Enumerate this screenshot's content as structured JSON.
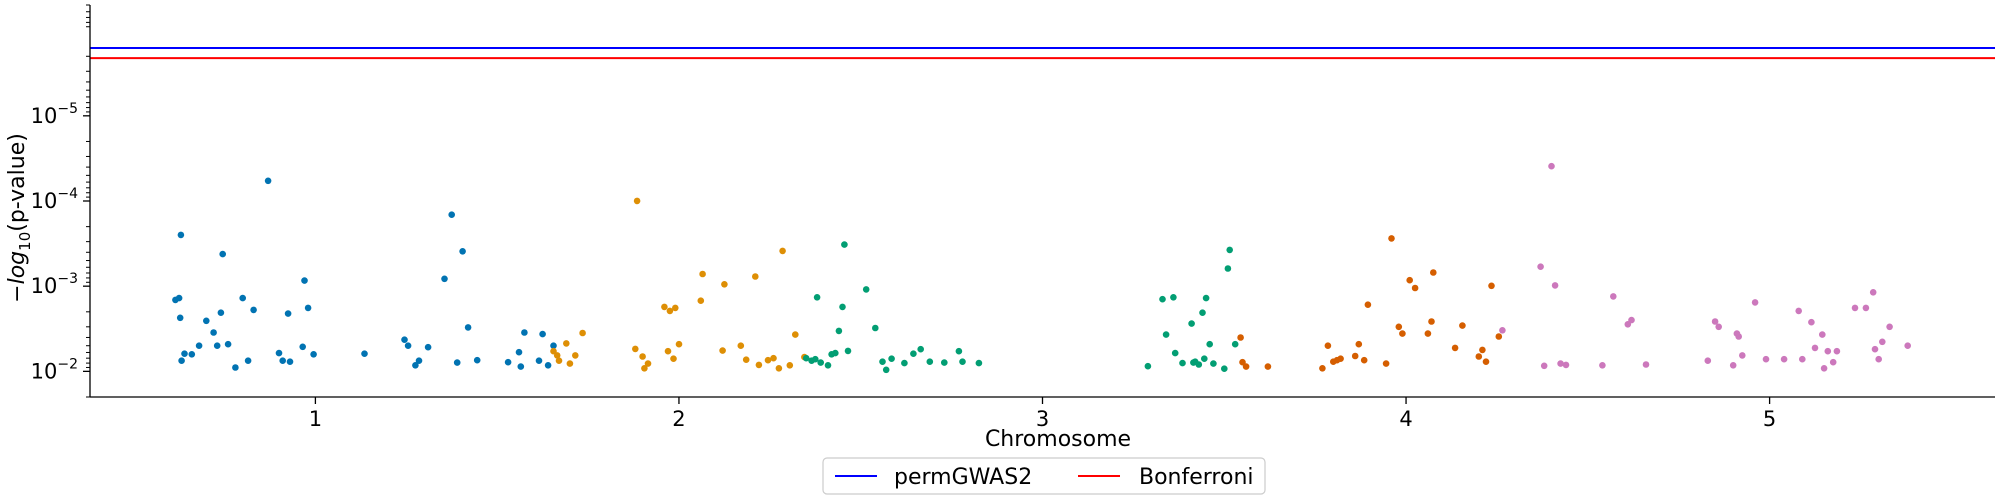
{
  "chart_data": {
    "type": "scatter",
    "title": "",
    "xlabel": "Chromosome",
    "ylabel_parts": {
      "prefix": "−",
      "log": "log",
      "sub": "10",
      "suffix": "(p-value)"
    },
    "x_scale": "genomic position (chromosomes placed end to end)",
    "y_scale": "log, inverted (smaller p-values plotted higher)",
    "ylim": [
      0.02,
      5e-07
    ],
    "xlim": [
      0.38,
      5.62
    ],
    "grid": false,
    "x_ticks": [
      {
        "label": "1",
        "x": 1.0
      },
      {
        "label": "2",
        "x": 2.0
      },
      {
        "label": "3",
        "x": 3.0
      },
      {
        "label": "4",
        "x": 4.0
      },
      {
        "label": "5",
        "x": 5.0
      }
    ],
    "y_ticks": [
      {
        "base": "10",
        "exp": "−2",
        "value": 0.01
      },
      {
        "base": "10",
        "exp": "−3",
        "value": 0.001
      },
      {
        "base": "10",
        "exp": "−4",
        "value": 0.0001
      },
      {
        "base": "10",
        "exp": "−5",
        "value": 1e-05
      }
    ],
    "thresholds": [
      {
        "name": "permGWAS2",
        "color": "#0000ff",
        "p": 1.6e-06
      },
      {
        "name": "Bonferroni",
        "color": "#ff0000",
        "p": 2.1e-06
      }
    ],
    "legend": {
      "position": "bottom-center",
      "columns": 2
    },
    "series": [
      {
        "color": "#0173b2",
        "points": [
          [
            0.615,
            0.00145
          ],
          [
            0.625,
            0.00138
          ],
          [
            0.628,
            0.00235
          ],
          [
            0.63,
            0.00025
          ],
          [
            0.632,
            0.0075
          ],
          [
            0.64,
            0.0062
          ],
          [
            0.66,
            0.0063
          ],
          [
            0.68,
            0.005
          ],
          [
            0.7,
            0.00255
          ],
          [
            0.72,
            0.0035
          ],
          [
            0.73,
            0.005
          ],
          [
            0.74,
            0.00205
          ],
          [
            0.745,
            0.00042
          ],
          [
            0.76,
            0.0048
          ],
          [
            0.78,
            0.009
          ],
          [
            0.8,
            0.00138
          ],
          [
            0.815,
            0.0075
          ],
          [
            0.83,
            0.0019
          ],
          [
            0.87,
            5.8e-05
          ],
          [
            0.9,
            0.0061
          ],
          [
            0.91,
            0.0075
          ],
          [
            0.925,
            0.0021
          ],
          [
            0.93,
            0.0077
          ],
          [
            0.965,
            0.00515
          ],
          [
            0.97,
            0.00086
          ],
          [
            0.98,
            0.0018
          ],
          [
            0.995,
            0.0063
          ],
          [
            1.135,
            0.0062
          ],
          [
            1.245,
            0.00425
          ],
          [
            1.255,
            0.005
          ],
          [
            1.275,
            0.0085
          ],
          [
            1.285,
            0.0075
          ],
          [
            1.31,
            0.0052
          ],
          [
            1.355,
            0.00082
          ],
          [
            1.375,
            0.000145
          ],
          [
            1.39,
            0.0079
          ],
          [
            1.405,
            0.00039
          ],
          [
            1.42,
            0.00305
          ],
          [
            1.445,
            0.0074
          ],
          [
            1.53,
            0.0078
          ],
          [
            1.56,
            0.00595
          ],
          [
            1.565,
            0.0088
          ],
          [
            1.575,
            0.0035
          ],
          [
            1.615,
            0.0075
          ],
          [
            1.625,
            0.00365
          ],
          [
            1.64,
            0.0085
          ],
          [
            1.655,
            0.005
          ]
        ]
      },
      {
        "color": "#de8f05",
        "points": [
          [
            1.655,
            0.0058
          ],
          [
            1.665,
            0.0065
          ],
          [
            1.67,
            0.0075
          ],
          [
            1.69,
            0.0047
          ],
          [
            1.7,
            0.0081
          ],
          [
            1.715,
            0.0065
          ],
          [
            1.735,
            0.00355
          ],
          [
            1.88,
            0.00545
          ],
          [
            1.885,
            9.98e-05
          ],
          [
            1.9,
            0.0067
          ],
          [
            1.905,
            0.0092
          ],
          [
            1.915,
            0.0081
          ],
          [
            1.96,
            0.00175
          ],
          [
            1.97,
            0.0058
          ],
          [
            1.975,
            0.00195
          ],
          [
            1.985,
            0.0071
          ],
          [
            1.99,
            0.0018
          ],
          [
            2.0,
            0.0048
          ],
          [
            2.06,
            0.00148
          ],
          [
            2.065,
            0.00072
          ],
          [
            2.12,
            0.0057
          ],
          [
            2.125,
            0.00095
          ],
          [
            2.17,
            0.005
          ],
          [
            2.185,
            0.0073
          ],
          [
            2.21,
            0.00077
          ],
          [
            2.22,
            0.0084
          ],
          [
            2.245,
            0.0074
          ],
          [
            2.26,
            0.007
          ],
          [
            2.275,
            0.0092
          ],
          [
            2.285,
            0.000385
          ],
          [
            2.305,
            0.0085
          ],
          [
            2.32,
            0.0037
          ],
          [
            2.345,
            0.0068
          ]
        ]
      },
      {
        "color": "#029e73",
        "points": [
          [
            2.35,
            0.007
          ],
          [
            2.365,
            0.0075
          ],
          [
            2.375,
            0.0072
          ],
          [
            2.38,
            0.00135
          ],
          [
            2.39,
            0.0079
          ],
          [
            2.41,
            0.0085
          ],
          [
            2.42,
            0.0063
          ],
          [
            2.43,
            0.0061
          ],
          [
            2.44,
            0.00335
          ],
          [
            2.45,
            0.00175
          ],
          [
            2.455,
            0.000325
          ],
          [
            2.465,
            0.00575
          ],
          [
            2.515,
            0.00109
          ],
          [
            2.54,
            0.0031
          ],
          [
            2.56,
            0.0077
          ],
          [
            2.57,
            0.0096
          ],
          [
            2.585,
            0.0071
          ],
          [
            2.62,
            0.008
          ],
          [
            2.645,
            0.0062
          ],
          [
            2.665,
            0.0055
          ],
          [
            2.69,
            0.0077
          ],
          [
            2.73,
            0.0079
          ],
          [
            2.77,
            0.0058
          ],
          [
            2.78,
            0.0077
          ],
          [
            2.825,
            0.008
          ],
          [
            3.29,
            0.0087
          ],
          [
            3.33,
            0.00142
          ],
          [
            3.34,
            0.0037
          ],
          [
            3.36,
            0.00135
          ],
          [
            3.365,
            0.0061
          ],
          [
            3.385,
            0.008
          ],
          [
            3.41,
            0.00275
          ],
          [
            3.415,
            0.0079
          ],
          [
            3.42,
            0.0077
          ],
          [
            3.43,
            0.0083
          ],
          [
            3.44,
            0.00205
          ],
          [
            3.445,
            0.0071
          ],
          [
            3.45,
            0.00138
          ],
          [
            3.46,
            0.0048
          ],
          [
            3.47,
            0.0081
          ],
          [
            3.5,
            0.0093
          ],
          [
            3.51,
            0.00062
          ],
          [
            3.515,
            0.000375
          ],
          [
            3.53,
            0.0048
          ]
        ]
      },
      {
        "color": "#d55e00",
        "points": [
          [
            3.55,
            0.0078
          ],
          [
            3.56,
            0.0088
          ],
          [
            3.545,
            0.004
          ],
          [
            3.62,
            0.0088
          ],
          [
            3.77,
            0.0092
          ],
          [
            3.785,
            0.005
          ],
          [
            3.8,
            0.0077
          ],
          [
            3.81,
            0.0074
          ],
          [
            3.82,
            0.0071
          ],
          [
            3.86,
            0.0066
          ],
          [
            3.87,
            0.0048
          ],
          [
            3.885,
            0.0074
          ],
          [
            3.895,
            0.00165
          ],
          [
            3.945,
            0.0081
          ],
          [
            3.96,
            0.000275
          ],
          [
            3.98,
            0.003
          ],
          [
            3.99,
            0.0036
          ],
          [
            4.01,
            0.00085
          ],
          [
            4.025,
            0.00105
          ],
          [
            4.06,
            0.0036
          ],
          [
            4.07,
            0.0026
          ],
          [
            4.075,
            0.00069
          ],
          [
            4.135,
            0.0053
          ],
          [
            4.155,
            0.0029
          ],
          [
            4.2,
            0.0067
          ],
          [
            4.21,
            0.0056
          ],
          [
            4.22,
            0.0077
          ],
          [
            4.235,
            0.00099
          ],
          [
            4.255,
            0.0039
          ]
        ]
      },
      {
        "color": "#cc78bc",
        "points": [
          [
            4.265,
            0.0033
          ],
          [
            4.37,
            0.00059
          ],
          [
            4.38,
            0.0086
          ],
          [
            4.4,
            3.9e-05
          ],
          [
            4.41,
            0.00098
          ],
          [
            4.425,
            0.0081
          ],
          [
            4.44,
            0.0084
          ],
          [
            4.54,
            0.0085
          ],
          [
            4.57,
            0.00132
          ],
          [
            4.61,
            0.0028
          ],
          [
            4.62,
            0.0025
          ],
          [
            4.66,
            0.0083
          ],
          [
            4.83,
            0.0075
          ],
          [
            4.85,
            0.0026
          ],
          [
            4.86,
            0.003
          ],
          [
            4.9,
            0.0085
          ],
          [
            4.91,
            0.0036
          ],
          [
            4.915,
            0.0039
          ],
          [
            4.925,
            0.0065
          ],
          [
            4.96,
            0.00155
          ],
          [
            4.99,
            0.0072
          ],
          [
            5.04,
            0.0072
          ],
          [
            5.08,
            0.00195
          ],
          [
            5.09,
            0.0072
          ],
          [
            5.115,
            0.00265
          ],
          [
            5.125,
            0.0053
          ],
          [
            5.145,
            0.0037
          ],
          [
            5.15,
            0.0092
          ],
          [
            5.16,
            0.0058
          ],
          [
            5.175,
            0.0078
          ],
          [
            5.185,
            0.0058
          ],
          [
            5.235,
            0.0018
          ],
          [
            5.265,
            0.0018
          ],
          [
            5.285,
            0.00118
          ],
          [
            5.29,
            0.0055
          ],
          [
            5.3,
            0.0072
          ],
          [
            5.31,
            0.0045
          ],
          [
            5.33,
            0.003
          ],
          [
            5.38,
            0.005
          ]
        ]
      }
    ]
  }
}
